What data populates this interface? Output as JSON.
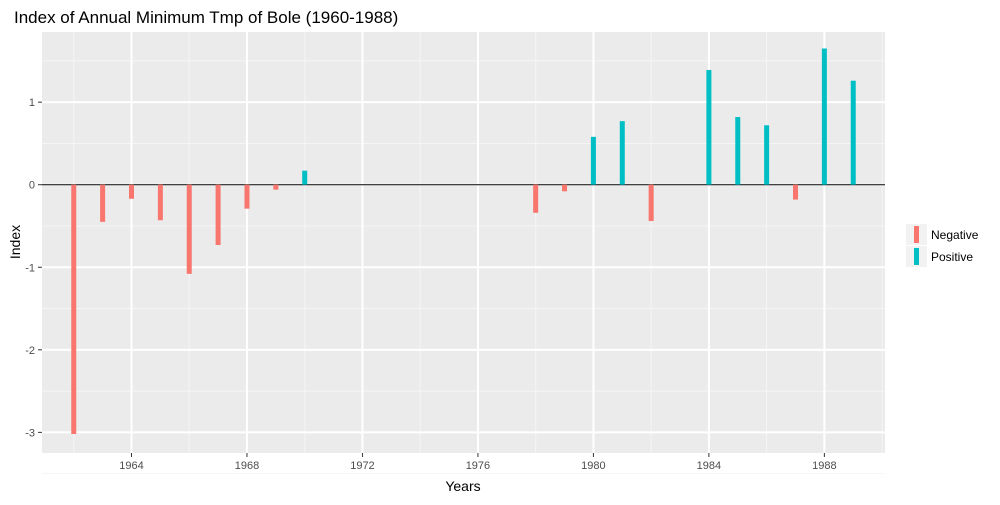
{
  "chart_data": {
    "type": "bar",
    "title": "Index of Annual Minimum Tmp of Bole (1960-1988)",
    "xlabel": "Years",
    "ylabel": "Index",
    "xlim": [
      1960.9,
      1990.1
    ],
    "ylim": [
      -3.25,
      1.85
    ],
    "x_ticks": [
      1964,
      1968,
      1972,
      1976,
      1980,
      1984,
      1988
    ],
    "y_ticks": [
      -3,
      -2,
      -1,
      0,
      1
    ],
    "grid": true,
    "legend_position": "right",
    "legend": [
      {
        "label": "Negative",
        "color": "#F8766D"
      },
      {
        "label": "Positive",
        "color": "#00BFC4"
      }
    ],
    "series": [
      {
        "name": "Negative",
        "color": "#F8766D",
        "points": [
          {
            "x": 1962,
            "y": -3.02
          },
          {
            "x": 1963,
            "y": -0.45
          },
          {
            "x": 1964,
            "y": -0.17
          },
          {
            "x": 1965,
            "y": -0.43
          },
          {
            "x": 1966,
            "y": -1.08
          },
          {
            "x": 1967,
            "y": -0.73
          },
          {
            "x": 1968,
            "y": -0.29
          },
          {
            "x": 1969,
            "y": -0.06
          },
          {
            "x": 1978,
            "y": -0.34
          },
          {
            "x": 1979,
            "y": -0.08
          },
          {
            "x": 1982,
            "y": -0.44
          },
          {
            "x": 1987,
            "y": -0.18
          }
        ]
      },
      {
        "name": "Positive",
        "color": "#00BFC4",
        "points": [
          {
            "x": 1970,
            "y": 0.17
          },
          {
            "x": 1980,
            "y": 0.58
          },
          {
            "x": 1981,
            "y": 0.77
          },
          {
            "x": 1984,
            "y": 1.39
          },
          {
            "x": 1985,
            "y": 0.82
          },
          {
            "x": 1986,
            "y": 0.72
          },
          {
            "x": 1988,
            "y": 1.65
          },
          {
            "x": 1989,
            "y": 1.26
          }
        ]
      }
    ]
  },
  "colors": {
    "panel_background": "#EBEBEB",
    "grid_major": "#FFFFFF",
    "grid_minor": "#F5F5F5",
    "zero_line": "#000000",
    "tick_label": "#4D4D4D",
    "title": "#000000",
    "axis_title": "#000000"
  }
}
